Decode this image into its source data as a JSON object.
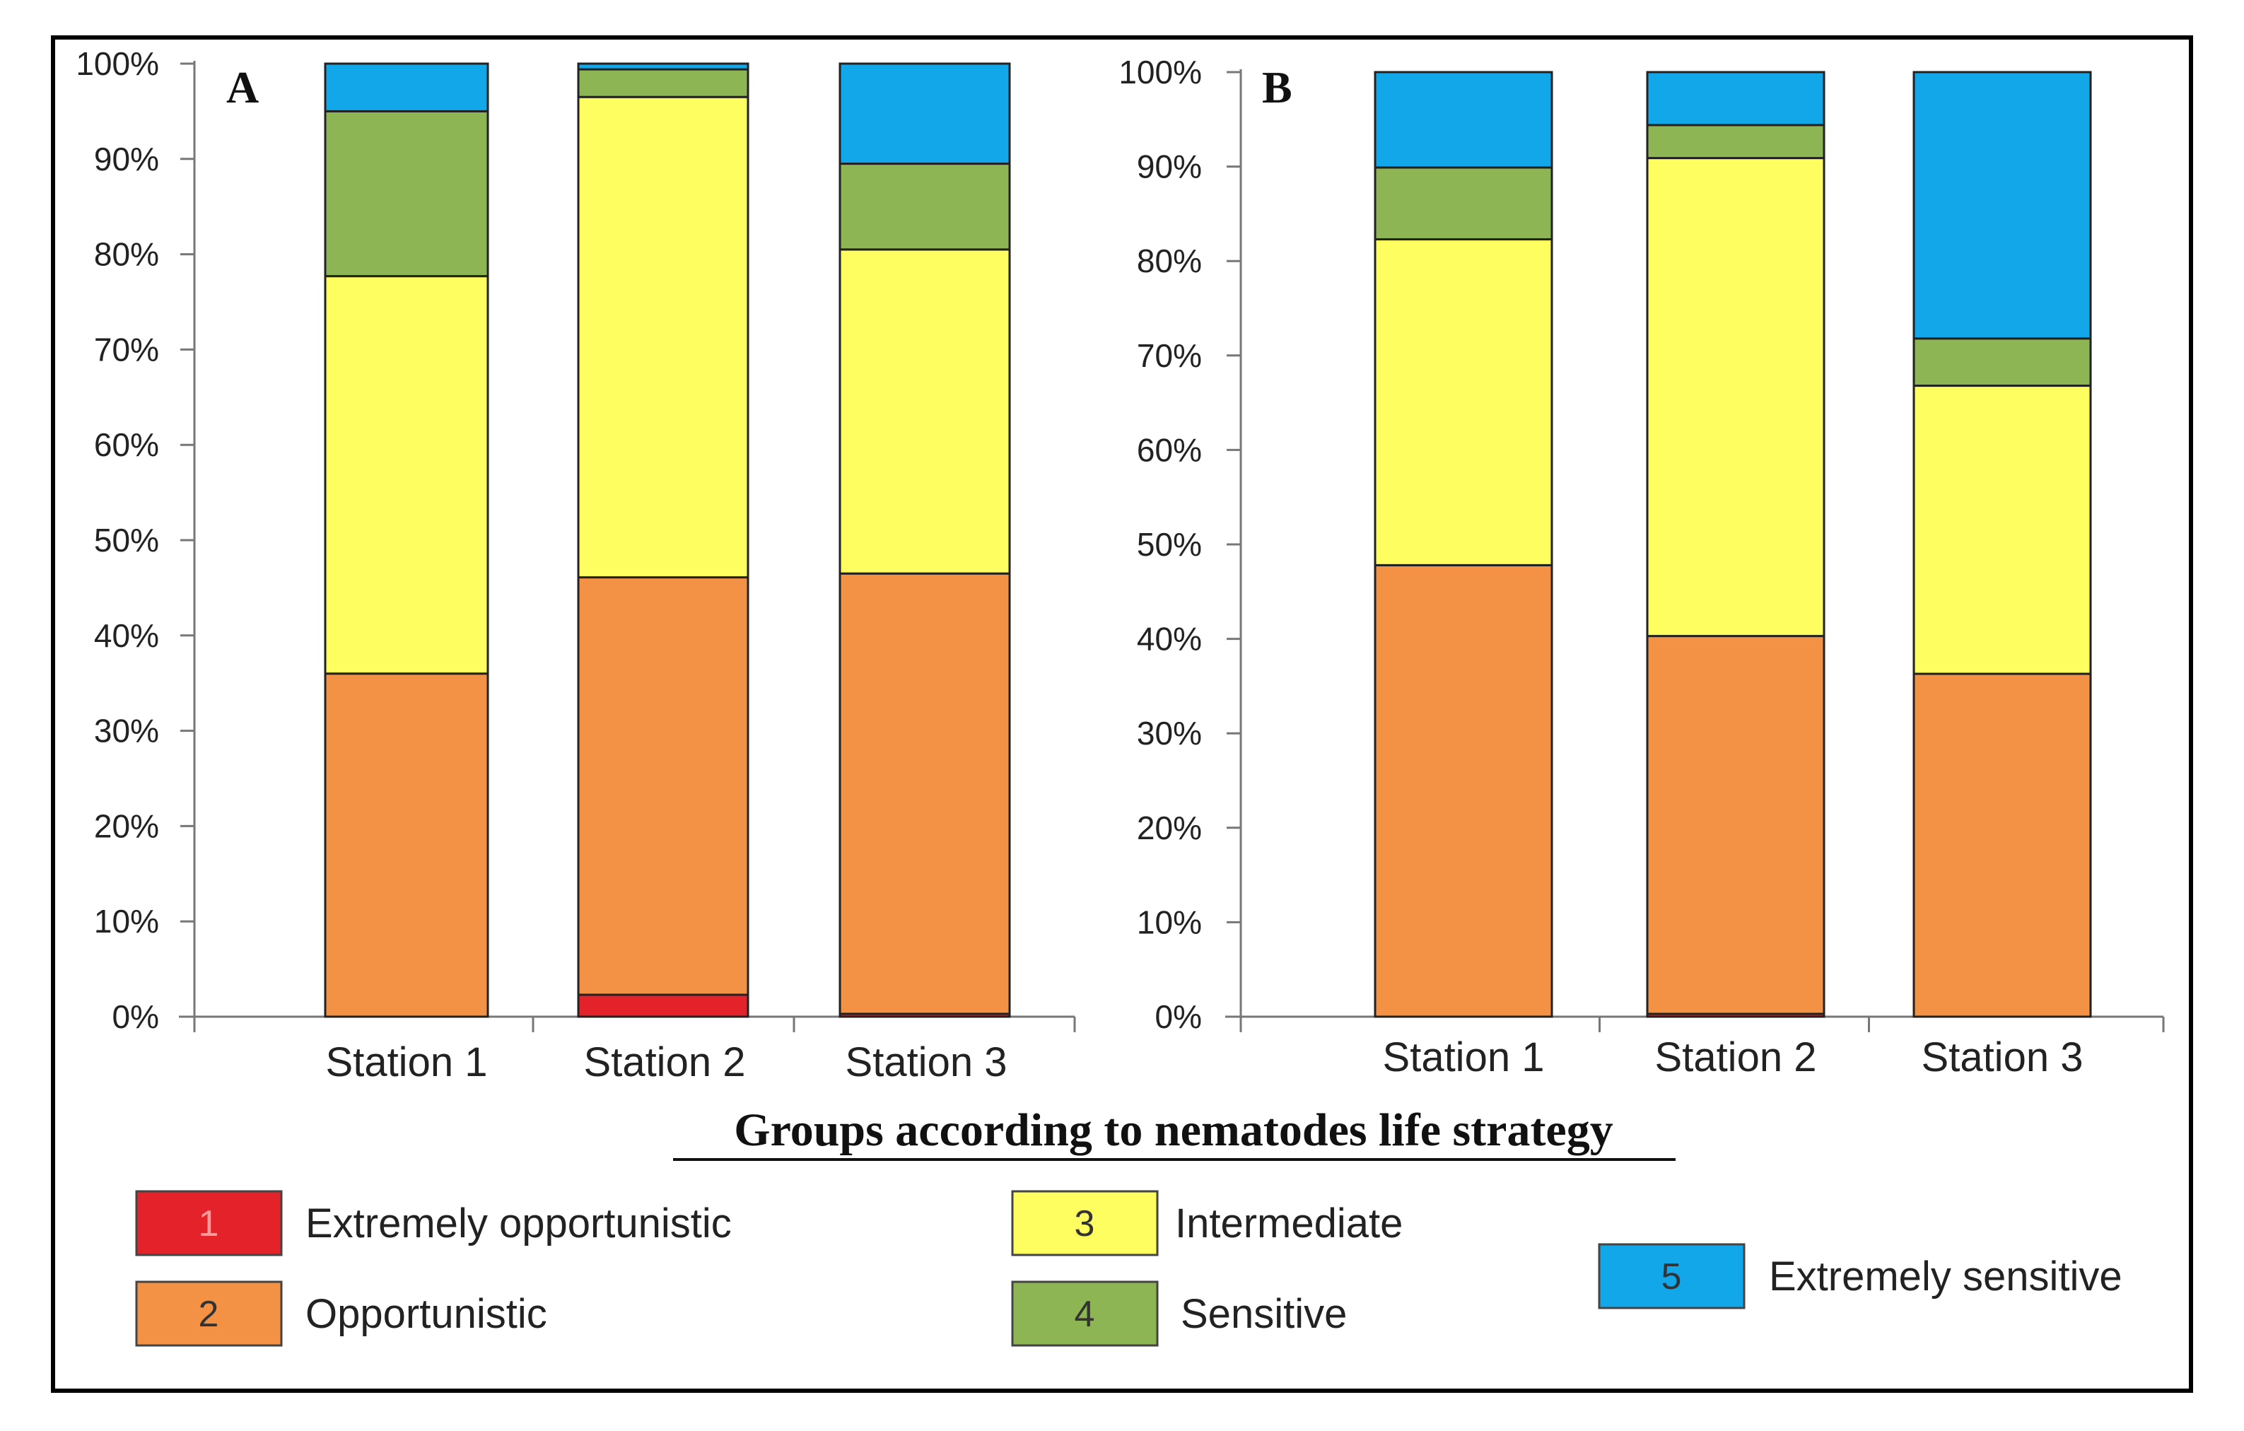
{
  "chart_data": [
    {
      "type": "bar",
      "stacked": true,
      "percent": true,
      "panel_label": "A",
      "categories": [
        "Station 1",
        "Station 2",
        "Station 3"
      ],
      "ylim": [
        0,
        100
      ],
      "yticks": [
        "0%",
        "10%",
        "20%",
        "30%",
        "40%",
        "50%",
        "60%",
        "70%",
        "80%",
        "90%",
        "100%"
      ],
      "series": [
        {
          "name": "Extremely opportunistic",
          "values": [
            0,
            2.3,
            0.3
          ]
        },
        {
          "name": "Opportunistic",
          "values": [
            36.0,
            43.8,
            46.2
          ]
        },
        {
          "name": "Intermediate",
          "values": [
            41.7,
            50.4,
            34.0
          ]
        },
        {
          "name": "Sensitive",
          "values": [
            17.3,
            2.9,
            9.0
          ]
        },
        {
          "name": "Extremely sensitive",
          "values": [
            5.0,
            0.6,
            10.5
          ]
        }
      ]
    },
    {
      "type": "bar",
      "stacked": true,
      "percent": true,
      "panel_label": "B",
      "categories": [
        "Station 1",
        "Station 2",
        "Station 3"
      ],
      "ylim": [
        0,
        100
      ],
      "yticks": [
        "0%",
        "10%",
        "20%",
        "30%",
        "40%",
        "50%",
        "60%",
        "70%",
        "80%",
        "90%",
        "100%"
      ],
      "series": [
        {
          "name": "Extremely opportunistic",
          "values": [
            0,
            0.3,
            0
          ]
        },
        {
          "name": "Opportunistic",
          "values": [
            47.8,
            40.0,
            36.3
          ]
        },
        {
          "name": "Intermediate",
          "values": [
            34.5,
            50.6,
            30.5
          ]
        },
        {
          "name": "Sensitive",
          "values": [
            7.6,
            3.5,
            5.0
          ]
        },
        {
          "name": "Extremely sensitive",
          "values": [
            10.1,
            5.6,
            28.2
          ]
        }
      ]
    }
  ],
  "legend": {
    "title": "Groups according to nematodes life strategy",
    "items": [
      {
        "code": "1",
        "label": "Extremely opportunistic",
        "color": "#e3222a"
      },
      {
        "code": "2",
        "label": "Opportunistic",
        "color": "#f39244"
      },
      {
        "code": "3",
        "label": "Intermediate",
        "color": "#fefe61"
      },
      {
        "code": "4",
        "label": "Sensitive",
        "color": "#8db553"
      },
      {
        "code": "5",
        "label": "Extremely sensitive",
        "color": "#12a7e9"
      }
    ]
  }
}
